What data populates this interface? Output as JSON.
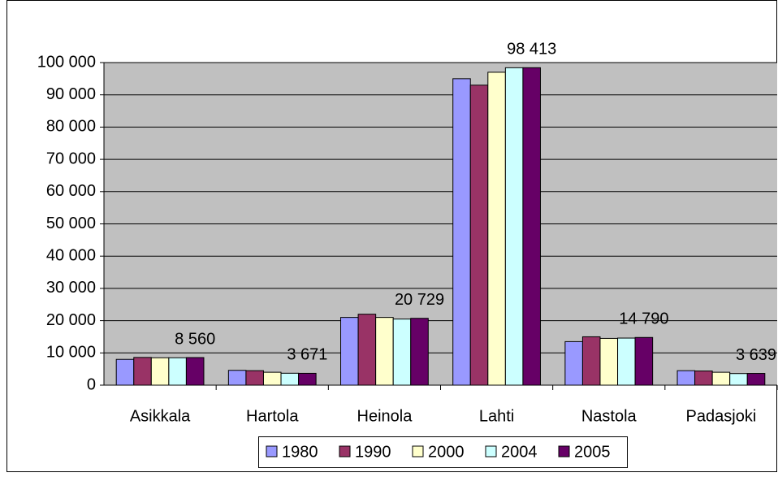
{
  "chart_data": {
    "type": "bar",
    "categories": [
      "Asikkala",
      "Hartola",
      "Heinola",
      "Lahti",
      "Nastola",
      "Padasjoki"
    ],
    "series": [
      {
        "name": "1980",
        "color": "#9999ff",
        "values": [
          8000,
          4600,
          21000,
          95000,
          13500,
          4500
        ]
      },
      {
        "name": "1990",
        "color": "#993366",
        "values": [
          8600,
          4500,
          22000,
          93000,
          15000,
          4400
        ]
      },
      {
        "name": "2000",
        "color": "#ffffcc",
        "values": [
          8500,
          4000,
          21000,
          97000,
          14500,
          4000
        ]
      },
      {
        "name": "2004",
        "color": "#ccffff",
        "values": [
          8500,
          3700,
          20500,
          98400,
          14600,
          3600
        ]
      },
      {
        "name": "2005",
        "color": "#660066",
        "values": [
          8560,
          3671,
          20729,
          98413,
          14790,
          3639
        ],
        "value_labels": [
          "8 560",
          "3 671",
          "20 729",
          "98 413",
          "14 790",
          "3 639"
        ]
      }
    ],
    "ylim": [
      0,
      100000
    ],
    "yticks": [
      0,
      {
        "value": 10000,
        "label": "10 000"
      },
      {
        "value": 20000,
        "label": "20 000"
      },
      {
        "value": 30000,
        "label": "30 000"
      },
      {
        "value": 40000,
        "label": "40 000"
      },
      {
        "value": 50000,
        "label": "50 000"
      },
      {
        "value": 60000,
        "label": "60 000"
      },
      {
        "value": 70000,
        "label": "70 000"
      },
      {
        "value": 80000,
        "label": "80 000"
      },
      {
        "value": 90000,
        "label": "90 000"
      },
      {
        "value": 100000,
        "label": "100 000"
      }
    ],
    "grid": true,
    "plot_background": "#c0c0c0",
    "legend": "bottom"
  }
}
